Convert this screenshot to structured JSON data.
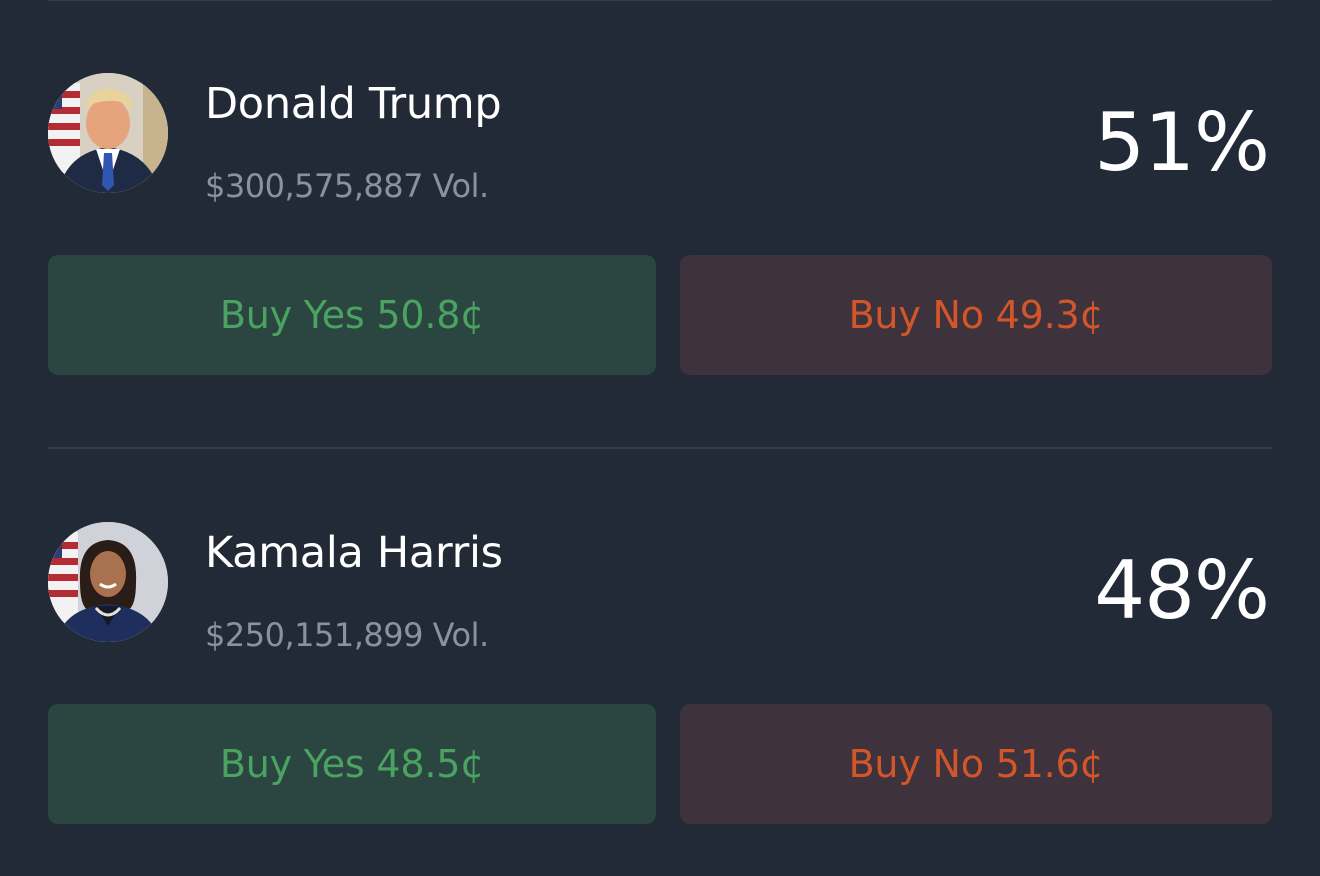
{
  "candidates": [
    {
      "name": "Donald Trump",
      "volume": "$300,575,887 Vol.",
      "probability": "51%",
      "buy_yes": "Buy Yes 50.8¢",
      "buy_no": "Buy No 49.3¢"
    },
    {
      "name": "Kamala Harris",
      "volume": "$250,151,899 Vol.",
      "probability": "48%",
      "buy_yes": "Buy Yes 48.5¢",
      "buy_no": "Buy No 51.6¢"
    }
  ],
  "colors": {
    "background": "#222a37",
    "divider": "#343e4c",
    "yes_bg": "#2b4540",
    "yes_text": "#4aa360",
    "no_bg": "#3e323c",
    "no_text": "#d3562b",
    "volume_text": "#8a929d"
  },
  "icons": {
    "trump_avatar": "portrait-photo",
    "harris_avatar": "portrait-photo"
  }
}
